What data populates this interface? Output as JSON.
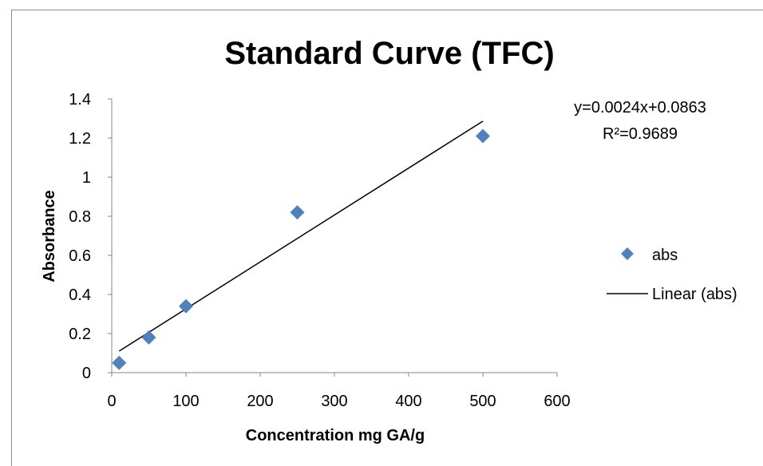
{
  "chart_data": {
    "type": "scatter",
    "title": "Standard Curve (TFC)",
    "xlabel": "Concentration mg GA/g",
    "ylabel": "Absorbance",
    "xlim": [
      0,
      600
    ],
    "ylim": [
      0,
      1.4
    ],
    "xticks": [
      "0",
      "100",
      "200",
      "300",
      "400",
      "500",
      "600"
    ],
    "yticks": [
      "0",
      "0.2",
      "0.4",
      "0.6",
      "0.8",
      "1",
      "1.2",
      "1.4"
    ],
    "grid": false,
    "legend_position": "right",
    "series": [
      {
        "name": "abs",
        "marker": "diamond",
        "color": "#4f81bd",
        "x": [
          10,
          50,
          100,
          250,
          500
        ],
        "y": [
          0.05,
          0.18,
          0.34,
          0.82,
          1.21
        ]
      }
    ],
    "trendline": {
      "name": "Linear (abs)",
      "color": "#000000",
      "slope": 0.0024,
      "intercept": 0.0863,
      "x_range": [
        10,
        500
      ],
      "equation": "y=0.0024x+0.0863",
      "r_squared": "R²=0.9689"
    }
  }
}
